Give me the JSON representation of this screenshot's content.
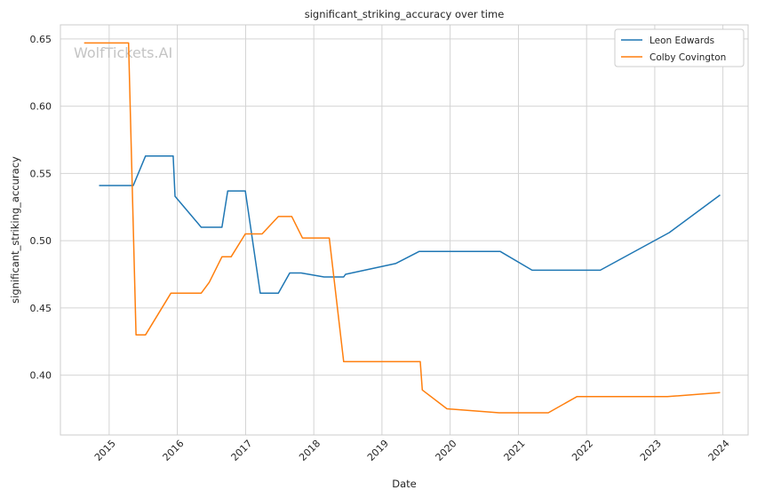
{
  "chart_data": {
    "type": "line",
    "title": "significant_striking_accuracy over time",
    "xlabel": "Date",
    "ylabel": "significant_striking_accuracy",
    "watermark": "WolfTickets.AI",
    "x_type": "date",
    "xlim": [
      "2014-04-15",
      "2024-05-15"
    ],
    "ylim": [
      0.3555,
      0.6605
    ],
    "x_ticks": [
      "2015",
      "2016",
      "2017",
      "2018",
      "2019",
      "2020",
      "2021",
      "2022",
      "2023",
      "2024"
    ],
    "y_ticks": [
      "0.40",
      "0.45",
      "0.50",
      "0.55",
      "0.60",
      "0.65"
    ],
    "y_tick_values": [
      0.4,
      0.45,
      0.5,
      0.55,
      0.6,
      0.65
    ],
    "grid": true,
    "legend_position": "top-right",
    "series": [
      {
        "name": "Leon Edwards",
        "color": "#1f77b4",
        "points": [
          [
            "2014-11-08",
            0.541
          ],
          [
            "2015-05-10",
            0.541
          ],
          [
            "2015-07-15",
            0.563
          ],
          [
            "2015-12-10",
            0.563
          ],
          [
            "2015-12-20",
            0.533
          ],
          [
            "2016-05-08",
            0.51
          ],
          [
            "2016-08-27",
            0.51
          ],
          [
            "2016-09-27",
            0.537
          ],
          [
            "2016-12-30",
            0.537
          ],
          [
            "2017-03-20",
            0.461
          ],
          [
            "2017-06-25",
            0.461
          ],
          [
            "2017-08-25",
            0.476
          ],
          [
            "2017-10-25",
            0.476
          ],
          [
            "2018-02-25",
            0.473
          ],
          [
            "2018-06-10",
            0.473
          ],
          [
            "2018-06-20",
            0.475
          ],
          [
            "2019-03-15",
            0.483
          ],
          [
            "2019-07-20",
            0.492
          ],
          [
            "2020-09-25",
            0.492
          ],
          [
            "2021-03-15",
            0.478
          ],
          [
            "2022-03-15",
            0.478
          ],
          [
            "2023-03-20",
            0.506
          ],
          [
            "2023-12-17",
            0.534
          ]
        ]
      },
      {
        "name": "Colby Covington",
        "color": "#ff7f0e",
        "points": [
          [
            "2014-08-20",
            0.647
          ],
          [
            "2015-04-15",
            0.647
          ],
          [
            "2015-05-25",
            0.43
          ],
          [
            "2015-07-15",
            0.43
          ],
          [
            "2015-11-28",
            0.461
          ],
          [
            "2016-05-08",
            0.461
          ],
          [
            "2016-06-20",
            0.469
          ],
          [
            "2016-08-27",
            0.488
          ],
          [
            "2016-10-15",
            0.488
          ],
          [
            "2016-12-30",
            0.505
          ],
          [
            "2017-03-30",
            0.505
          ],
          [
            "2017-06-25",
            0.518
          ],
          [
            "2017-09-05",
            0.518
          ],
          [
            "2017-11-01",
            0.502
          ],
          [
            "2018-03-25",
            0.502
          ],
          [
            "2018-06-10",
            0.41
          ],
          [
            "2019-07-25",
            0.41
          ],
          [
            "2019-08-05",
            0.389
          ],
          [
            "2019-12-15",
            0.375
          ],
          [
            "2020-09-20",
            0.372
          ],
          [
            "2021-06-10",
            0.372
          ],
          [
            "2021-11-10",
            0.384
          ],
          [
            "2022-03-05",
            0.384
          ],
          [
            "2023-03-10",
            0.384
          ],
          [
            "2023-12-17",
            0.387
          ]
        ]
      }
    ]
  }
}
